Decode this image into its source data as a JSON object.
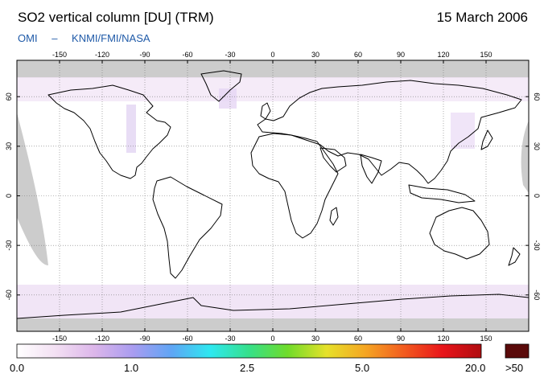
{
  "header": {
    "title": "SO2 vertical column [DU] (TRM)",
    "date": "15 March 2006",
    "source_parts": [
      "OMI",
      "–",
      "KNMI/FMI/NASA"
    ]
  },
  "map": {
    "projection": "equirectangular",
    "lon_range": [
      -180,
      180
    ],
    "lat_range": [
      -82,
      82
    ],
    "lon_ticks": [
      -150,
      -120,
      -90,
      -60,
      -30,
      0,
      30,
      60,
      90,
      120,
      150
    ],
    "lat_ticks": [
      60,
      30,
      0,
      -30,
      -60
    ],
    "lon_tick_labels": [
      "-150",
      "-120",
      "-90",
      "-60",
      "-30",
      "0",
      "30",
      "60",
      "90",
      "120",
      "150"
    ],
    "lat_tick_labels": [
      "60",
      "30",
      "0",
      "-30",
      "-60"
    ],
    "gridlines": true,
    "no_data_color": "#cccccc",
    "coastline_color": "#000000"
  },
  "colorbar": {
    "labels": [
      "0.0",
      "1.0",
      "2.5",
      "5.0",
      "20.0"
    ],
    "overflow_label": ">50",
    "overflow_color": "#5a0a0a",
    "gradient": [
      "#ffffff",
      "#f3e0f3",
      "#dcb6ea",
      "#a99cf0",
      "#5fa5f5",
      "#2ee8f0",
      "#35e08a",
      "#6fdc2a",
      "#e6e12a",
      "#f5a623",
      "#f25c1f",
      "#e8141a",
      "#b00d10"
    ]
  }
}
